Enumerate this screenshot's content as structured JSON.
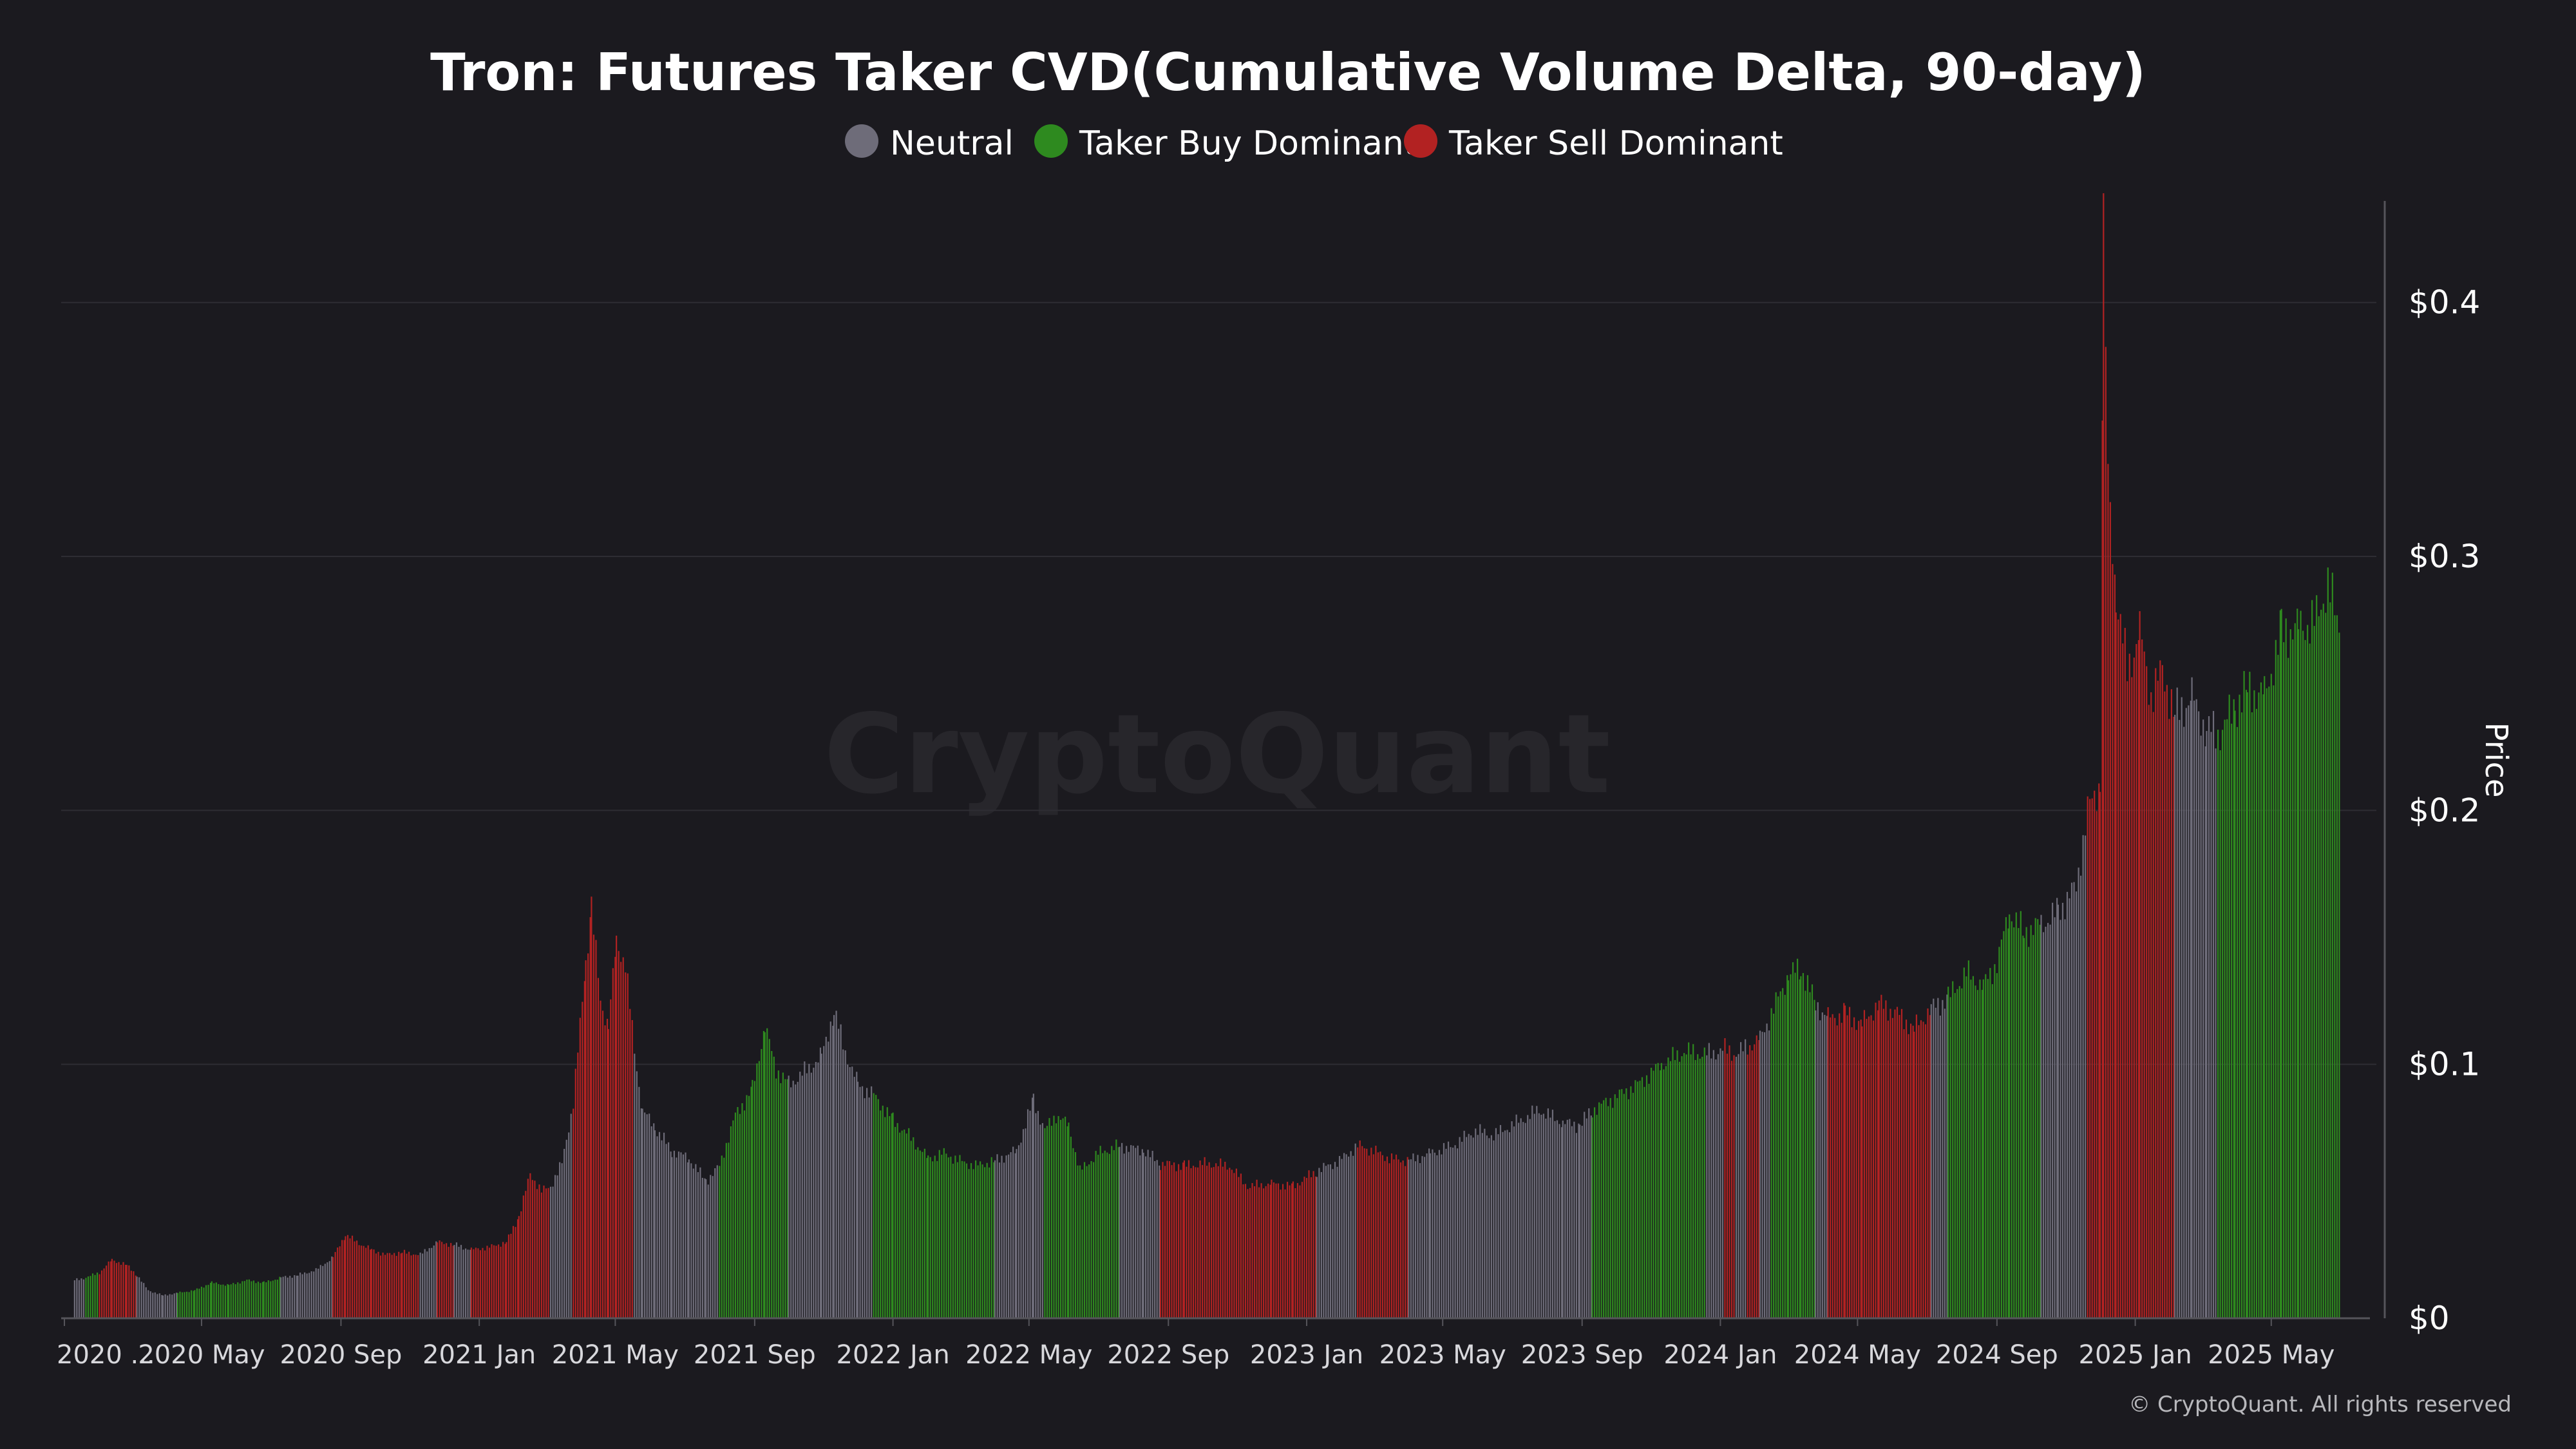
{
  "chart_data": {
    "type": "bar",
    "title": "Tron: Futures Taker CVD(Cumulative Volume Delta, 90-day)",
    "ylabel": "Price",
    "ylim": [
      0,
      0.44
    ],
    "yticks": [
      {
        "value": 0,
        "label": "$0"
      },
      {
        "value": 0.1,
        "label": "$0.1"
      },
      {
        "value": 0.2,
        "label": "$0.2"
      },
      {
        "value": 0.3,
        "label": "$0.3"
      },
      {
        "value": 0.4,
        "label": "$0.4"
      }
    ],
    "x_range": [
      "2020-01-01",
      "2025-07-10"
    ],
    "xticks": [
      {
        "date": "2020-01-01",
        "label": "2020 ..."
      },
      {
        "date": "2020-05-01",
        "label": "2020 May"
      },
      {
        "date": "2020-09-01",
        "label": "2020 Sep"
      },
      {
        "date": "2021-01-01",
        "label": "2021 Jan"
      },
      {
        "date": "2021-05-01",
        "label": "2021 May"
      },
      {
        "date": "2021-09-01",
        "label": "2021 Sep"
      },
      {
        "date": "2022-01-01",
        "label": "2022 Jan"
      },
      {
        "date": "2022-05-01",
        "label": "2022 May"
      },
      {
        "date": "2022-09-01",
        "label": "2022 Sep"
      },
      {
        "date": "2023-01-01",
        "label": "2023 Jan"
      },
      {
        "date": "2023-05-01",
        "label": "2023 May"
      },
      {
        "date": "2023-09-01",
        "label": "2023 Sep"
      },
      {
        "date": "2024-01-01",
        "label": "2024 Jan"
      },
      {
        "date": "2024-05-01",
        "label": "2024 May"
      },
      {
        "date": "2024-09-01",
        "label": "2024 Sep"
      },
      {
        "date": "2025-01-01",
        "label": "2025 Jan"
      },
      {
        "date": "2025-05-01",
        "label": "2025 May"
      }
    ],
    "grid": true,
    "legend_position": "top-center",
    "legend": [
      {
        "key": "neutral",
        "label": "Neutral",
        "color": "#6e6c79"
      },
      {
        "key": "buy",
        "label": "Taker Buy Dominant",
        "color": "#2e8a1f"
      },
      {
        "key": "sell",
        "label": "Taker Sell Dominant",
        "color": "#b22222"
      }
    ],
    "series": [
      {
        "date": "2020-01-10",
        "price": 0.015,
        "state": "neutral"
      },
      {
        "date": "2020-01-20",
        "price": 0.016,
        "state": "buy"
      },
      {
        "date": "2020-02-01",
        "price": 0.018,
        "state": "sell"
      },
      {
        "date": "2020-02-12",
        "price": 0.023,
        "state": "sell"
      },
      {
        "date": "2020-02-25",
        "price": 0.021,
        "state": "sell"
      },
      {
        "date": "2020-03-05",
        "price": 0.017,
        "state": "neutral"
      },
      {
        "date": "2020-03-15",
        "price": 0.011,
        "state": "neutral"
      },
      {
        "date": "2020-03-28",
        "price": 0.009,
        "state": "neutral"
      },
      {
        "date": "2020-04-10",
        "price": 0.01,
        "state": "buy"
      },
      {
        "date": "2020-04-25",
        "price": 0.011,
        "state": "buy"
      },
      {
        "date": "2020-05-10",
        "price": 0.014,
        "state": "buy"
      },
      {
        "date": "2020-05-25",
        "price": 0.013,
        "state": "buy"
      },
      {
        "date": "2020-06-10",
        "price": 0.015,
        "state": "buy"
      },
      {
        "date": "2020-06-25",
        "price": 0.014,
        "state": "buy"
      },
      {
        "date": "2020-07-10",
        "price": 0.016,
        "state": "neutral"
      },
      {
        "date": "2020-07-25",
        "price": 0.017,
        "state": "neutral"
      },
      {
        "date": "2020-08-10",
        "price": 0.019,
        "state": "neutral"
      },
      {
        "date": "2020-08-25",
        "price": 0.024,
        "state": "sell"
      },
      {
        "date": "2020-09-05",
        "price": 0.033,
        "state": "sell"
      },
      {
        "date": "2020-09-15",
        "price": 0.03,
        "state": "sell"
      },
      {
        "date": "2020-09-28",
        "price": 0.027,
        "state": "sell"
      },
      {
        "date": "2020-10-10",
        "price": 0.025,
        "state": "sell"
      },
      {
        "date": "2020-10-25",
        "price": 0.026,
        "state": "sell"
      },
      {
        "date": "2020-11-10",
        "price": 0.025,
        "state": "neutral"
      },
      {
        "date": "2020-11-25",
        "price": 0.03,
        "state": "sell"
      },
      {
        "date": "2020-12-10",
        "price": 0.029,
        "state": "neutral"
      },
      {
        "date": "2020-12-25",
        "price": 0.027,
        "state": "sell"
      },
      {
        "date": "2021-01-10",
        "price": 0.028,
        "state": "sell"
      },
      {
        "date": "2021-01-25",
        "price": 0.03,
        "state": "sell"
      },
      {
        "date": "2021-02-05",
        "price": 0.04,
        "state": "sell"
      },
      {
        "date": "2021-02-15",
        "price": 0.057,
        "state": "sell"
      },
      {
        "date": "2021-02-25",
        "price": 0.05,
        "state": "sell"
      },
      {
        "date": "2021-03-05",
        "price": 0.052,
        "state": "neutral"
      },
      {
        "date": "2021-03-15",
        "price": 0.061,
        "state": "neutral"
      },
      {
        "date": "2021-03-25",
        "price": 0.085,
        "state": "sell"
      },
      {
        "date": "2021-04-05",
        "price": 0.14,
        "state": "sell"
      },
      {
        "date": "2021-04-10",
        "price": 0.162,
        "state": "sell"
      },
      {
        "date": "2021-04-18",
        "price": 0.125,
        "state": "sell"
      },
      {
        "date": "2021-04-25",
        "price": 0.115,
        "state": "sell"
      },
      {
        "date": "2021-05-02",
        "price": 0.148,
        "state": "sell"
      },
      {
        "date": "2021-05-10",
        "price": 0.14,
        "state": "sell"
      },
      {
        "date": "2021-05-18",
        "price": 0.105,
        "state": "neutral"
      },
      {
        "date": "2021-05-25",
        "price": 0.082,
        "state": "neutral"
      },
      {
        "date": "2021-06-05",
        "price": 0.075,
        "state": "neutral"
      },
      {
        "date": "2021-06-20",
        "price": 0.066,
        "state": "neutral"
      },
      {
        "date": "2021-07-05",
        "price": 0.063,
        "state": "neutral"
      },
      {
        "date": "2021-07-20",
        "price": 0.054,
        "state": "neutral"
      },
      {
        "date": "2021-08-01",
        "price": 0.06,
        "state": "buy"
      },
      {
        "date": "2021-08-15",
        "price": 0.08,
        "state": "buy"
      },
      {
        "date": "2021-08-30",
        "price": 0.09,
        "state": "buy"
      },
      {
        "date": "2021-09-10",
        "price": 0.115,
        "state": "buy"
      },
      {
        "date": "2021-09-20",
        "price": 0.098,
        "state": "buy"
      },
      {
        "date": "2021-10-01",
        "price": 0.092,
        "state": "neutral"
      },
      {
        "date": "2021-10-15",
        "price": 0.097,
        "state": "neutral"
      },
      {
        "date": "2021-10-30",
        "price": 0.103,
        "state": "neutral"
      },
      {
        "date": "2021-11-10",
        "price": 0.121,
        "state": "neutral"
      },
      {
        "date": "2021-11-20",
        "price": 0.105,
        "state": "neutral"
      },
      {
        "date": "2021-12-01",
        "price": 0.092,
        "state": "neutral"
      },
      {
        "date": "2021-12-15",
        "price": 0.088,
        "state": "buy"
      },
      {
        "date": "2022-01-01",
        "price": 0.078,
        "state": "buy"
      },
      {
        "date": "2022-01-15",
        "price": 0.072,
        "state": "buy"
      },
      {
        "date": "2022-02-01",
        "price": 0.063,
        "state": "buy"
      },
      {
        "date": "2022-02-15",
        "price": 0.065,
        "state": "buy"
      },
      {
        "date": "2022-03-01",
        "price": 0.062,
        "state": "buy"
      },
      {
        "date": "2022-03-15",
        "price": 0.06,
        "state": "buy"
      },
      {
        "date": "2022-04-01",
        "price": 0.062,
        "state": "neutral"
      },
      {
        "date": "2022-04-20",
        "price": 0.066,
        "state": "neutral"
      },
      {
        "date": "2022-05-05",
        "price": 0.086,
        "state": "neutral"
      },
      {
        "date": "2022-05-15",
        "price": 0.074,
        "state": "buy"
      },
      {
        "date": "2022-05-25",
        "price": 0.08,
        "state": "buy"
      },
      {
        "date": "2022-06-05",
        "price": 0.076,
        "state": "buy"
      },
      {
        "date": "2022-06-15",
        "price": 0.058,
        "state": "buy"
      },
      {
        "date": "2022-07-01",
        "price": 0.065,
        "state": "buy"
      },
      {
        "date": "2022-07-20",
        "price": 0.068,
        "state": "neutral"
      },
      {
        "date": "2022-08-10",
        "price": 0.066,
        "state": "neutral"
      },
      {
        "date": "2022-08-25",
        "price": 0.061,
        "state": "sell"
      },
      {
        "date": "2022-09-15",
        "price": 0.06,
        "state": "sell"
      },
      {
        "date": "2022-10-05",
        "price": 0.061,
        "state": "sell"
      },
      {
        "date": "2022-10-25",
        "price": 0.06,
        "state": "sell"
      },
      {
        "date": "2022-11-10",
        "price": 0.052,
        "state": "sell"
      },
      {
        "date": "2022-12-01",
        "price": 0.053,
        "state": "sell"
      },
      {
        "date": "2022-12-20",
        "price": 0.052,
        "state": "sell"
      },
      {
        "date": "2023-01-10",
        "price": 0.058,
        "state": "neutral"
      },
      {
        "date": "2023-01-30",
        "price": 0.062,
        "state": "neutral"
      },
      {
        "date": "2023-02-15",
        "price": 0.068,
        "state": "sell"
      },
      {
        "date": "2023-03-01",
        "price": 0.066,
        "state": "sell"
      },
      {
        "date": "2023-03-15",
        "price": 0.063,
        "state": "sell"
      },
      {
        "date": "2023-04-01",
        "price": 0.062,
        "state": "neutral"
      },
      {
        "date": "2023-04-20",
        "price": 0.065,
        "state": "neutral"
      },
      {
        "date": "2023-05-10",
        "price": 0.068,
        "state": "neutral"
      },
      {
        "date": "2023-05-30",
        "price": 0.074,
        "state": "neutral"
      },
      {
        "date": "2023-06-15",
        "price": 0.072,
        "state": "neutral"
      },
      {
        "date": "2023-07-05",
        "price": 0.077,
        "state": "neutral"
      },
      {
        "date": "2023-07-25",
        "price": 0.082,
        "state": "neutral"
      },
      {
        "date": "2023-08-15",
        "price": 0.077,
        "state": "neutral"
      },
      {
        "date": "2023-08-30",
        "price": 0.076,
        "state": "neutral"
      },
      {
        "date": "2023-09-10",
        "price": 0.082,
        "state": "buy"
      },
      {
        "date": "2023-09-30",
        "price": 0.087,
        "state": "buy"
      },
      {
        "date": "2023-10-20",
        "price": 0.092,
        "state": "buy"
      },
      {
        "date": "2023-11-10",
        "price": 0.1,
        "state": "buy"
      },
      {
        "date": "2023-11-30",
        "price": 0.105,
        "state": "buy"
      },
      {
        "date": "2023-12-20",
        "price": 0.104,
        "state": "neutral"
      },
      {
        "date": "2024-01-05",
        "price": 0.106,
        "state": "sell"
      },
      {
        "date": "2024-01-15",
        "price": 0.104,
        "state": "neutral"
      },
      {
        "date": "2024-01-25",
        "price": 0.107,
        "state": "sell"
      },
      {
        "date": "2024-02-05",
        "price": 0.11,
        "state": "neutral"
      },
      {
        "date": "2024-02-15",
        "price": 0.12,
        "state": "buy"
      },
      {
        "date": "2024-03-01",
        "price": 0.135,
        "state": "buy"
      },
      {
        "date": "2024-03-12",
        "price": 0.138,
        "state": "buy"
      },
      {
        "date": "2024-03-25",
        "price": 0.124,
        "state": "neutral"
      },
      {
        "date": "2024-04-05",
        "price": 0.118,
        "state": "sell"
      },
      {
        "date": "2024-04-20",
        "price": 0.12,
        "state": "sell"
      },
      {
        "date": "2024-05-05",
        "price": 0.116,
        "state": "sell"
      },
      {
        "date": "2024-05-20",
        "price": 0.124,
        "state": "sell"
      },
      {
        "date": "2024-06-05",
        "price": 0.12,
        "state": "sell"
      },
      {
        "date": "2024-06-20",
        "price": 0.114,
        "state": "sell"
      },
      {
        "date": "2024-07-05",
        "price": 0.122,
        "state": "neutral"
      },
      {
        "date": "2024-07-20",
        "price": 0.126,
        "state": "buy"
      },
      {
        "date": "2024-08-05",
        "price": 0.136,
        "state": "buy"
      },
      {
        "date": "2024-08-20",
        "price": 0.131,
        "state": "buy"
      },
      {
        "date": "2024-09-01",
        "price": 0.14,
        "state": "buy"
      },
      {
        "date": "2024-09-12",
        "price": 0.16,
        "state": "buy"
      },
      {
        "date": "2024-09-25",
        "price": 0.152,
        "state": "buy"
      },
      {
        "date": "2024-10-10",
        "price": 0.155,
        "state": "neutral"
      },
      {
        "date": "2024-10-25",
        "price": 0.16,
        "state": "neutral"
      },
      {
        "date": "2024-11-10",
        "price": 0.17,
        "state": "neutral"
      },
      {
        "date": "2024-11-20",
        "price": 0.2,
        "state": "sell"
      },
      {
        "date": "2024-12-01",
        "price": 0.21,
        "state": "sell"
      },
      {
        "date": "2024-12-04",
        "price": 0.432,
        "state": "sell"
      },
      {
        "date": "2024-12-08",
        "price": 0.33,
        "state": "sell"
      },
      {
        "date": "2024-12-15",
        "price": 0.285,
        "state": "sell"
      },
      {
        "date": "2024-12-25",
        "price": 0.255,
        "state": "sell"
      },
      {
        "date": "2025-01-05",
        "price": 0.27,
        "state": "sell"
      },
      {
        "date": "2025-01-15",
        "price": 0.245,
        "state": "sell"
      },
      {
        "date": "2025-01-25",
        "price": 0.255,
        "state": "sell"
      },
      {
        "date": "2025-02-05",
        "price": 0.238,
        "state": "neutral"
      },
      {
        "date": "2025-02-20",
        "price": 0.244,
        "state": "neutral"
      },
      {
        "date": "2025-03-05",
        "price": 0.232,
        "state": "neutral"
      },
      {
        "date": "2025-03-15",
        "price": 0.23,
        "state": "buy"
      },
      {
        "date": "2025-03-30",
        "price": 0.24,
        "state": "buy"
      },
      {
        "date": "2025-04-10",
        "price": 0.248,
        "state": "buy"
      },
      {
        "date": "2025-04-25",
        "price": 0.245,
        "state": "buy"
      },
      {
        "date": "2025-05-10",
        "price": 0.27,
        "state": "buy"
      },
      {
        "date": "2025-05-25",
        "price": 0.272,
        "state": "buy"
      },
      {
        "date": "2025-06-10",
        "price": 0.275,
        "state": "buy"
      },
      {
        "date": "2025-06-20",
        "price": 0.29,
        "state": "buy"
      },
      {
        "date": "2025-06-30",
        "price": 0.27,
        "state": "buy"
      }
    ]
  },
  "watermark": "CryptoQuant",
  "copyright": "© CryptoQuant. All rights reserved"
}
